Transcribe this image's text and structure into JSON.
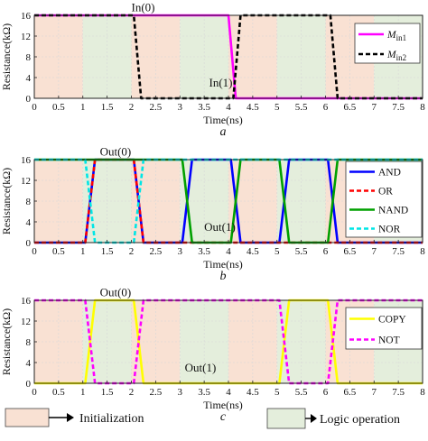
{
  "colors": {
    "init_shade": "#f9e1d3",
    "logic_shade": "#e4eedc",
    "magenta": "#ff00ff",
    "black": "#000000",
    "blue": "#0000ff",
    "red": "#ff0000",
    "green": "#00a000",
    "cyan": "#00e6e6",
    "yellow": "#ffff00"
  },
  "legend_bottom": {
    "initialization": "Initialization",
    "logic_operation": "Logic operation"
  },
  "chart_data": [
    {
      "type": "line",
      "panel_label": "a",
      "xlabel": "Time(ns)",
      "ylabel": "Resistance(kΩ)",
      "xlim": [
        0,
        8
      ],
      "ylim": [
        0,
        16
      ],
      "xticks": [
        0,
        0.5,
        1,
        1.5,
        2,
        2.5,
        3,
        3.5,
        4,
        4.5,
        5,
        5.5,
        6,
        6.5,
        7,
        7.5,
        8
      ],
      "yticks": [
        0,
        4,
        8,
        12,
        16
      ],
      "xtick_labels": [
        "0",
        "0.5",
        "1",
        "1.5",
        "2",
        "2.5",
        "3",
        "3.5",
        "4",
        "4.5",
        "5",
        "5.5",
        "6",
        "6.5",
        "7",
        "7.5",
        "8"
      ],
      "ytick_labels": [
        "0",
        "4",
        "8",
        "12",
        "16"
      ],
      "shading": [
        {
          "from": 0,
          "to": 1,
          "kind": "init"
        },
        {
          "from": 1,
          "to": 2,
          "kind": "logic"
        },
        {
          "from": 2,
          "to": 3,
          "kind": "init"
        },
        {
          "from": 3,
          "to": 4,
          "kind": "logic"
        },
        {
          "from": 4,
          "to": 5,
          "kind": "init"
        },
        {
          "from": 5,
          "to": 6,
          "kind": "logic"
        },
        {
          "from": 6,
          "to": 7,
          "kind": "init"
        },
        {
          "from": 7,
          "to": 8,
          "kind": "logic"
        }
      ],
      "series": [
        {
          "name": "M",
          "subscript": "in1",
          "color": "#ff00ff",
          "dash": "solid",
          "x": [
            0,
            4.0,
            4.15,
            8
          ],
          "y": [
            16,
            16,
            0,
            0
          ]
        },
        {
          "name": "M",
          "subscript": "in2",
          "color": "#000000",
          "dash": "dashed",
          "x": [
            0,
            2.05,
            2.2,
            4.1,
            4.25,
            6.1,
            6.25,
            8
          ],
          "y": [
            16,
            16,
            0,
            0,
            16,
            16,
            0,
            0
          ]
        }
      ],
      "annotations": [
        {
          "text": "In(0)",
          "x": 2.0,
          "y": 17.5
        },
        {
          "text": "In(1)",
          "x": 3.6,
          "y": 2.3
        }
      ],
      "legend_position": "top-right"
    },
    {
      "type": "line",
      "panel_label": "b",
      "xlabel": "Time(ns)",
      "ylabel": "Resistance(kΩ)",
      "xlim": [
        0,
        8
      ],
      "ylim": [
        0,
        16
      ],
      "xticks": [
        0,
        0.5,
        1,
        1.5,
        2,
        2.5,
        3,
        3.5,
        4,
        4.5,
        5,
        5.5,
        6,
        6.5,
        7,
        7.5,
        8
      ],
      "yticks": [
        0,
        4,
        8,
        12,
        16
      ],
      "xtick_labels": [
        "0",
        "0.5",
        "1",
        "1.5",
        "2",
        "2.5",
        "3",
        "3.5",
        "4",
        "4.5",
        "5",
        "5.5",
        "6",
        "6.5",
        "7",
        "7.5",
        "8"
      ],
      "ytick_labels": [
        "0",
        "4",
        "8",
        "12",
        "16"
      ],
      "shading": [
        {
          "from": 0,
          "to": 1,
          "kind": "init"
        },
        {
          "from": 1,
          "to": 2,
          "kind": "logic"
        },
        {
          "from": 2,
          "to": 3,
          "kind": "init"
        },
        {
          "from": 3,
          "to": 4,
          "kind": "logic"
        },
        {
          "from": 4,
          "to": 5,
          "kind": "init"
        },
        {
          "from": 5,
          "to": 6,
          "kind": "logic"
        },
        {
          "from": 6,
          "to": 7,
          "kind": "init"
        },
        {
          "from": 7,
          "to": 8,
          "kind": "logic"
        }
      ],
      "series": [
        {
          "name": "AND",
          "color": "#0000ff",
          "dash": "solid",
          "x": [
            0,
            1.05,
            1.25,
            2.05,
            2.25,
            3.05,
            3.25,
            4.05,
            4.25,
            5.05,
            5.25,
            6.05,
            6.25,
            8
          ],
          "y": [
            0,
            0,
            16,
            16,
            0,
            0,
            16,
            16,
            0,
            0,
            16,
            16,
            0,
            0
          ]
        },
        {
          "name": "OR",
          "color": "#ff0000",
          "dash": "dashed",
          "x": [
            0,
            1.05,
            1.25,
            2.05,
            2.25,
            8
          ],
          "y": [
            0,
            0,
            16,
            16,
            0,
            0
          ]
        },
        {
          "name": "NAND",
          "color": "#00a000",
          "dash": "solid",
          "x": [
            0,
            3.05,
            3.25,
            4.05,
            4.25,
            5.05,
            5.25,
            6.05,
            6.25,
            8
          ],
          "y": [
            16,
            16,
            0,
            0,
            16,
            16,
            0,
            0,
            16,
            16
          ]
        },
        {
          "name": "NOR",
          "color": "#00e6e6",
          "dash": "dashed",
          "x": [
            0,
            1.05,
            1.25,
            2.05,
            2.25,
            8
          ],
          "y": [
            16,
            16,
            0,
            0,
            16,
            16
          ]
        }
      ],
      "annotations": [
        {
          "text": "Out(0)",
          "x": 1.35,
          "y": 17.5
        },
        {
          "text": "Out(1)",
          "x": 3.5,
          "y": 2.3
        }
      ],
      "legend_position": "right"
    },
    {
      "type": "line",
      "panel_label": "c",
      "xlabel": "Time(ns)",
      "ylabel": "Resistance(kΩ)",
      "xlim": [
        0,
        8
      ],
      "ylim": [
        0,
        16
      ],
      "xticks": [
        0,
        0.5,
        1,
        1.5,
        2,
        2.5,
        3,
        3.5,
        4,
        4.5,
        5,
        5.5,
        6,
        6.5,
        7,
        7.5,
        8
      ],
      "yticks": [
        0,
        4,
        8,
        12,
        16
      ],
      "xtick_labels": [
        "0",
        "0.5",
        "1",
        "1.5",
        "2",
        "2.5",
        "3",
        "3.5",
        "4",
        "4.5",
        "5",
        "5.5",
        "6",
        "6.5",
        "7",
        "7.5",
        "8"
      ],
      "ytick_labels": [
        "0",
        "4",
        "8",
        "12",
        "16"
      ],
      "shading": [
        {
          "from": 0,
          "to": 1,
          "kind": "init"
        },
        {
          "from": 1,
          "to": 2,
          "kind": "logic"
        },
        {
          "from": 2,
          "to": 3,
          "kind": "init"
        },
        {
          "from": 3,
          "to": 4,
          "kind": "logic"
        },
        {
          "from": 4,
          "to": 5,
          "kind": "init"
        },
        {
          "from": 5,
          "to": 6,
          "kind": "logic"
        },
        {
          "from": 6,
          "to": 7,
          "kind": "init"
        },
        {
          "from": 7,
          "to": 8,
          "kind": "logic"
        }
      ],
      "series": [
        {
          "name": "COPY",
          "color": "#ffff00",
          "dash": "solid",
          "x": [
            0,
            1.05,
            1.25,
            2.05,
            2.25,
            5.05,
            5.25,
            6.05,
            6.25,
            8
          ],
          "y": [
            0,
            0,
            16,
            16,
            0,
            0,
            16,
            16,
            0,
            0
          ]
        },
        {
          "name": "NOT",
          "color": "#ff00ff",
          "dash": "dashed",
          "x": [
            0,
            1.05,
            1.25,
            2.05,
            2.25,
            5.05,
            5.25,
            6.05,
            6.25,
            8
          ],
          "y": [
            16,
            16,
            0,
            0,
            16,
            16,
            0,
            0,
            16,
            16
          ]
        }
      ],
      "annotations": [
        {
          "text": "Out(0)",
          "x": 1.35,
          "y": 17.5
        },
        {
          "text": "Out(1)",
          "x": 3.1,
          "y": 2.3
        }
      ],
      "legend_position": "right"
    }
  ]
}
